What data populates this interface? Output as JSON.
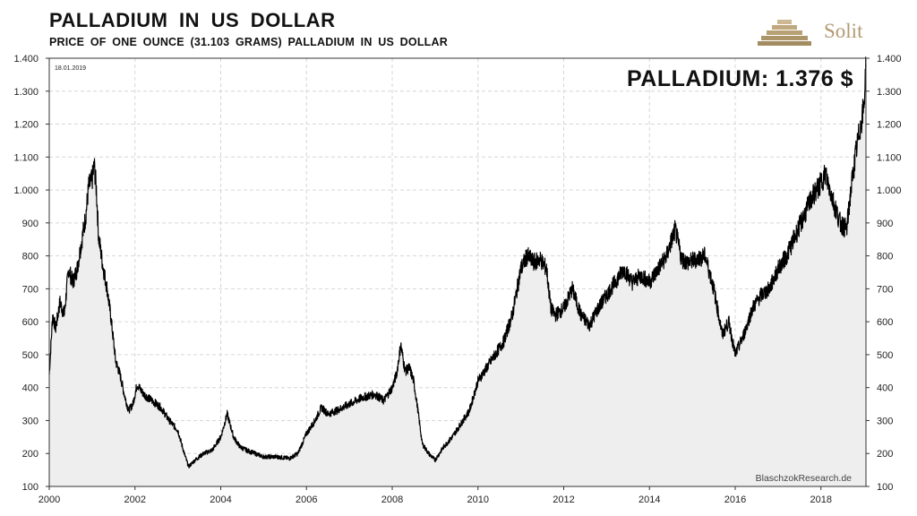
{
  "header": {
    "title": "PALLADIUM  IN  US DOLLAR",
    "subtitle": "PRICE  OF  ONE  OUNCE  (31.103 GRAMS)  PALLADIUM  IN  US DOLLAR",
    "logo_text": "Solit",
    "logo_icon": "stepped-pyramid-icon"
  },
  "colors": {
    "line": "#000000",
    "area": "#eeeeee",
    "grid": "#d6d6d6",
    "logo": "#b29a72"
  },
  "chart_data": {
    "type": "line",
    "title": "PALLADIUM: 1.376 $",
    "date_note": "18.01.2019",
    "credit": "BlaschzokResearch.de",
    "xlabel": "",
    "ylabel": "",
    "xlim": [
      2000.0,
      2019.05
    ],
    "ylim": [
      100,
      1400
    ],
    "x_ticks": [
      2000,
      2002,
      2004,
      2006,
      2008,
      2010,
      2012,
      2014,
      2016,
      2018
    ],
    "x_tick_labels": [
      "2000",
      "2002",
      "2004",
      "2006",
      "2008",
      "2010",
      "2012",
      "2014",
      "2016",
      "2018"
    ],
    "y_ticks": [
      100,
      200,
      300,
      400,
      500,
      600,
      700,
      800,
      900,
      1000,
      1100,
      1200,
      1300,
      1400
    ],
    "y_tick_labels": [
      "100",
      "200",
      "300",
      "400",
      "500",
      "600",
      "700",
      "800",
      "900",
      "1.000",
      "1.100",
      "1.200",
      "1.300",
      "1.400"
    ],
    "grid": true,
    "area_fill": true,
    "series": [
      {
        "x": [
          2000.0,
          2000.08,
          2000.15,
          2000.25,
          2000.35,
          2000.45,
          2000.55,
          2000.65,
          2000.75,
          2000.85,
          2000.92,
          2001.0,
          2001.05,
          2001.1,
          2001.15,
          2001.25,
          2001.35,
          2001.45,
          2001.55,
          2001.65,
          2001.75,
          2001.85,
          2001.95,
          2002.05,
          2002.2,
          2002.4,
          2002.6,
          2002.8,
          2003.0,
          2003.15,
          2003.25,
          2003.4,
          2003.6,
          2003.8,
          2004.0,
          2004.15,
          2004.3,
          2004.45,
          2004.6,
          2004.8,
          2005.0,
          2005.3,
          2005.6,
          2005.8,
          2006.0,
          2006.2,
          2006.35,
          2006.5,
          2006.7,
          2007.0,
          2007.3,
          2007.6,
          2007.8,
          2008.0,
          2008.1,
          2008.2,
          2008.3,
          2008.4,
          2008.5,
          2008.6,
          2008.7,
          2008.85,
          2009.0,
          2009.2,
          2009.4,
          2009.6,
          2009.8,
          2010.0,
          2010.2,
          2010.4,
          2010.6,
          2010.8,
          2011.0,
          2011.15,
          2011.3,
          2011.45,
          2011.6,
          2011.7,
          2011.8,
          2012.0,
          2012.2,
          2012.4,
          2012.6,
          2012.8,
          2013.0,
          2013.2,
          2013.4,
          2013.6,
          2013.8,
          2014.0,
          2014.2,
          2014.4,
          2014.6,
          2014.75,
          2014.9,
          2015.1,
          2015.3,
          2015.5,
          2015.7,
          2015.85,
          2016.0,
          2016.2,
          2016.4,
          2016.6,
          2016.8,
          2017.0,
          2017.2,
          2017.4,
          2017.6,
          2017.8,
          2018.0,
          2018.1,
          2018.3,
          2018.45,
          2018.6,
          2018.7,
          2018.8,
          2018.9,
          2019.0,
          2019.05
        ],
        "values": [
          440,
          620,
          580,
          660,
          620,
          760,
          720,
          760,
          840,
          920,
          1010,
          1030,
          1075,
          1000,
          860,
          770,
          700,
          600,
          480,
          440,
          380,
          330,
          350,
          410,
          380,
          360,
          340,
          300,
          270,
          200,
          160,
          180,
          200,
          210,
          250,
          320,
          250,
          220,
          210,
          200,
          190,
          190,
          185,
          200,
          260,
          300,
          340,
          320,
          330,
          350,
          370,
          380,
          360,
          400,
          440,
          530,
          450,
          460,
          420,
          330,
          230,
          200,
          180,
          220,
          250,
          290,
          330,
          420,
          460,
          500,
          540,
          620,
          760,
          800,
          780,
          790,
          760,
          640,
          620,
          640,
          700,
          620,
          590,
          640,
          680,
          720,
          760,
          720,
          740,
          720,
          760,
          800,
          880,
          790,
          780,
          790,
          800,
          700,
          560,
          600,
          500,
          560,
          640,
          680,
          700,
          760,
          800,
          860,
          920,
          980,
          1020,
          1050,
          960,
          900,
          880,
          1000,
          1100,
          1180,
          1250,
          1376
        ]
      }
    ]
  }
}
